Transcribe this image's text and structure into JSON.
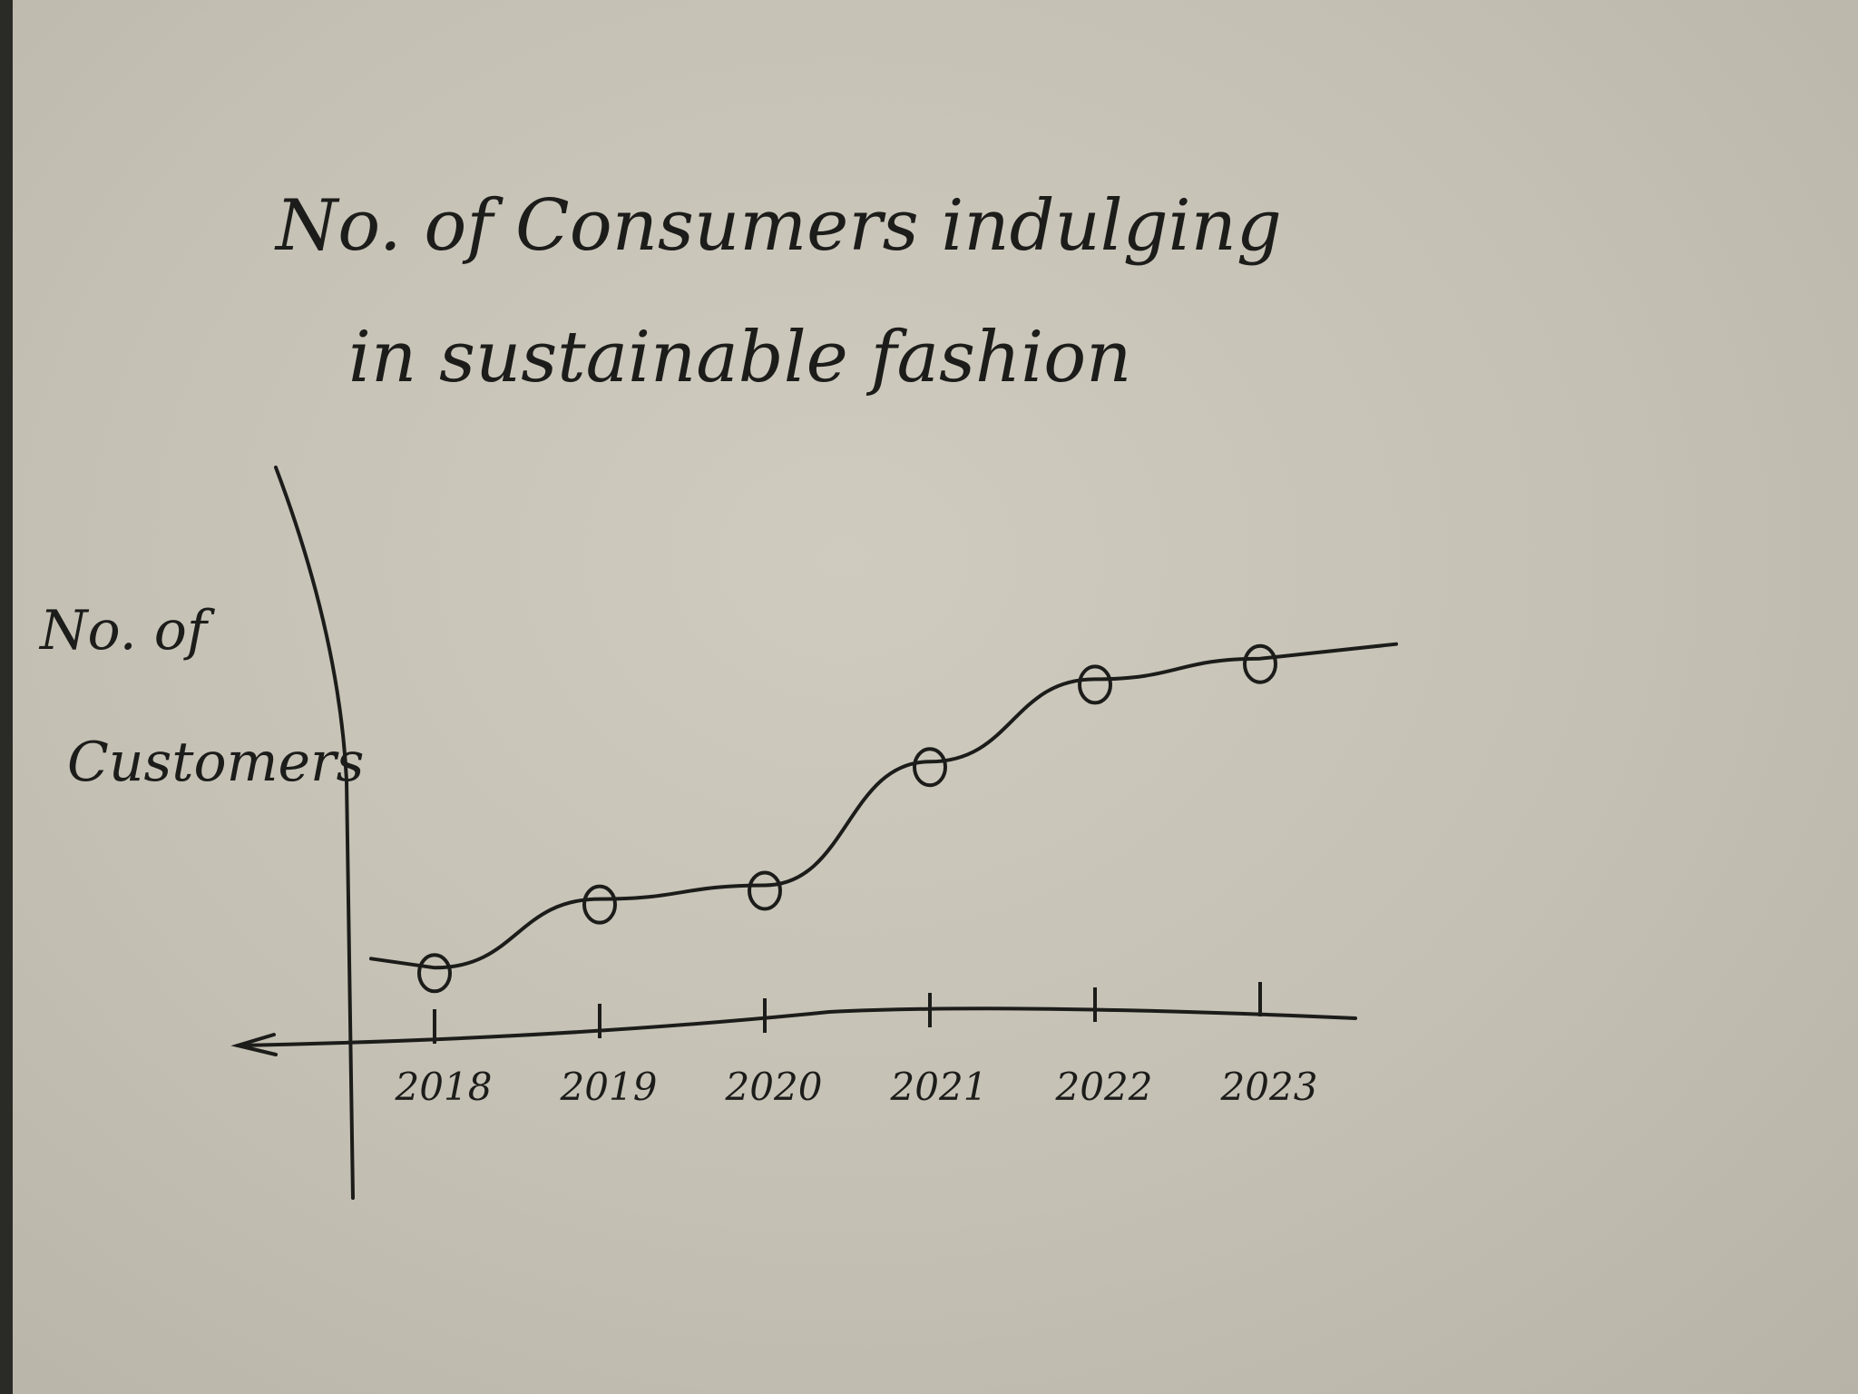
{
  "chart_data": {
    "type": "line",
    "title": "No. of Consumers indulging in sustainable fashion",
    "title_lines": [
      "No. of Consumers indulging",
      "in sustainable fashion"
    ],
    "xlabel": "",
    "ylabel": "No. of Customers",
    "ylabel_lines": [
      "No. of",
      "Customers"
    ],
    "categories": [
      "2018",
      "2019",
      "2020",
      "2021",
      "2022",
      "2023"
    ],
    "x_tick_labels": [
      "2018",
      "2019",
      "2020",
      "2021",
      "2022",
      "2023"
    ],
    "values": [
      1,
      2,
      2.2,
      4,
      5.2,
      5.5
    ],
    "ylim": [
      0,
      6.5
    ],
    "y_ticks": false,
    "grid": false,
    "legend": "none",
    "marker": "hand-drawn circle",
    "ink_color": "#1c1c1a",
    "paper_color": "#c8c4b8"
  }
}
